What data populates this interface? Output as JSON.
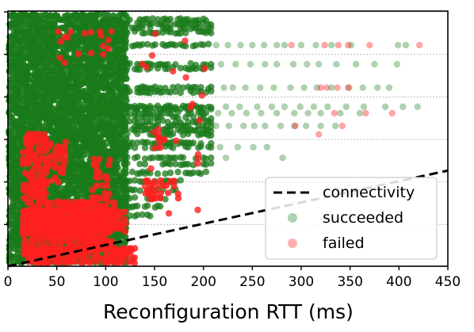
{
  "chart_data": {
    "type": "scatter",
    "title": "",
    "xlabel": "Reconfiguration RTT (ms)",
    "ylabel": "",
    "xlim": [
      0,
      450
    ],
    "ylim": [
      0,
      6
    ],
    "x_ticks": [
      0,
      50,
      100,
      150,
      200,
      250,
      300,
      350,
      400,
      450
    ],
    "y_gridlines": [
      1,
      2,
      3,
      4,
      5,
      6
    ],
    "grid": "horizontal dotted",
    "legend_position": "bottom-right",
    "legend": [
      {
        "label": "connectivity",
        "style": "dashed-line",
        "color": "#000000"
      },
      {
        "label": "succeeded",
        "style": "marker",
        "color": "#1a7a1a"
      },
      {
        "label": "failed",
        "style": "marker",
        "color": "#ff2020"
      }
    ],
    "connectivity_line": {
      "x": [
        0,
        450
      ],
      "y": [
        0,
        2.25
      ]
    },
    "series": [
      {
        "name": "succeeded",
        "color": "#1a7a1a",
        "outlier_points": [
          [
            213,
            5.2
          ],
          [
            225,
            5.2
          ],
          [
            238,
            5.2
          ],
          [
            250,
            5.2
          ],
          [
            262,
            5.2
          ],
          [
            275,
            5.2
          ],
          [
            283,
            5.2
          ],
          [
            300,
            5.2
          ],
          [
            315,
            5.2
          ],
          [
            331,
            5.2
          ],
          [
            351,
            5.2
          ],
          [
            399,
            5.2
          ],
          [
            407,
            5.2
          ],
          [
            218,
            4.75
          ],
          [
            233,
            4.75
          ],
          [
            248,
            4.75
          ],
          [
            263,
            4.75
          ],
          [
            275,
            4.75
          ],
          [
            292,
            4.75
          ],
          [
            306,
            4.75
          ],
          [
            318,
            4.75
          ],
          [
            336,
            4.75
          ],
          [
            356,
            4.75
          ],
          [
            375,
            4.75
          ],
          [
            398,
            4.75
          ],
          [
            221,
            4.2
          ],
          [
            230,
            4.2
          ],
          [
            243,
            4.2
          ],
          [
            258,
            4.2
          ],
          [
            272,
            4.2
          ],
          [
            289,
            4.2
          ],
          [
            303,
            4.2
          ],
          [
            316,
            4.2
          ],
          [
            331,
            4.2
          ],
          [
            349,
            4.2
          ],
          [
            363,
            4.2
          ],
          [
            378,
            4.2
          ],
          [
            390,
            4.2
          ],
          [
            223,
            3.75
          ],
          [
            237,
            3.75
          ],
          [
            255,
            3.75
          ],
          [
            270,
            3.75
          ],
          [
            283,
            3.75
          ],
          [
            299,
            3.75
          ],
          [
            313,
            3.75
          ],
          [
            327,
            3.75
          ],
          [
            346,
            3.75
          ],
          [
            364,
            3.75
          ],
          [
            386,
            3.75
          ],
          [
            404,
            3.75
          ],
          [
            419,
            3.75
          ],
          [
            215,
            3.6
          ],
          [
            229,
            3.6
          ],
          [
            244,
            3.6
          ],
          [
            259,
            3.6
          ],
          [
            275,
            3.6
          ],
          [
            293,
            3.6
          ],
          [
            307,
            3.6
          ],
          [
            320,
            3.6
          ],
          [
            340,
            3.6
          ],
          [
            360,
            3.6
          ],
          [
            213,
            3.3
          ],
          [
            226,
            3.3
          ],
          [
            241,
            3.3
          ],
          [
            252,
            3.3
          ],
          [
            263,
            3.3
          ],
          [
            279,
            3.3
          ],
          [
            293,
            3.3
          ],
          [
            305,
            3.3
          ],
          [
            320,
            3.3
          ],
          [
            335,
            3.3
          ],
          [
            217,
            2.8
          ],
          [
            223,
            2.55
          ],
          [
            235,
            2.8
          ],
          [
            251,
            2.8
          ],
          [
            265,
            2.8
          ],
          [
            281,
            2.55
          ]
        ]
      },
      {
        "name": "failed",
        "color": "#ff2020",
        "outlier_points": [
          [
            290,
            5.2
          ],
          [
            324,
            5.2
          ],
          [
            338,
            5.2
          ],
          [
            348,
            5.2
          ],
          [
            370,
            5.2
          ],
          [
            421,
            5.2
          ],
          [
            320,
            4.2
          ],
          [
            326,
            4.2
          ],
          [
            337,
            4.2
          ],
          [
            348,
            4.2
          ],
          [
            294,
            3.3
          ],
          [
            318,
            3.1
          ],
          [
            342,
            3.3
          ],
          [
            334,
            3.6
          ],
          [
            366,
            3.6
          ],
          [
            393,
            3.6
          ]
        ]
      }
    ]
  }
}
